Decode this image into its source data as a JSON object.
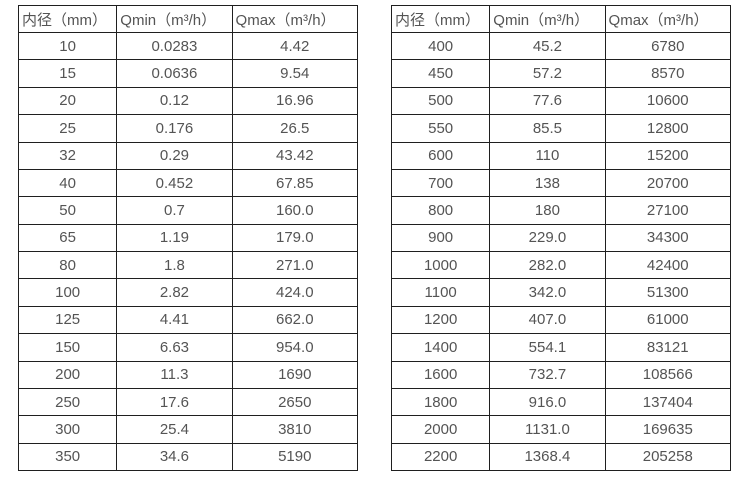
{
  "page": {
    "background": "#ffffff",
    "text_color": "#545454",
    "border_color": "#1f1f1f"
  },
  "tables": [
    {
      "name": "flow-table-small-diameters",
      "headers": [
        "内径（mm）",
        "Qmin（m³/h）",
        "Qmax（m³/h）"
      ],
      "rows": [
        [
          "10",
          "0.0283",
          "4.42"
        ],
        [
          "15",
          "0.0636",
          "9.54"
        ],
        [
          "20",
          "0.12",
          "16.96"
        ],
        [
          "25",
          "0.176",
          "26.5"
        ],
        [
          "32",
          "0.29",
          "43.42"
        ],
        [
          "40",
          "0.452",
          "67.85"
        ],
        [
          "50",
          "0.7",
          "160.0"
        ],
        [
          "65",
          "1.19",
          "179.0"
        ],
        [
          "80",
          "1.8",
          "271.0"
        ],
        [
          "100",
          "2.82",
          "424.0"
        ],
        [
          "125",
          "4.41",
          "662.0"
        ],
        [
          "150",
          "6.63",
          "954.0"
        ],
        [
          "200",
          "11.3",
          "1690"
        ],
        [
          "250",
          "17.6",
          "2650"
        ],
        [
          "300",
          "25.4",
          "3810"
        ],
        [
          "350",
          "34.6",
          "5190"
        ]
      ]
    },
    {
      "name": "flow-table-large-diameters",
      "headers": [
        "内径（mm）",
        "Qmin（m³/h）",
        "Qmax（m³/h）"
      ],
      "rows": [
        [
          "400",
          "45.2",
          "6780"
        ],
        [
          "450",
          "57.2",
          "8570"
        ],
        [
          "500",
          "77.6",
          "10600"
        ],
        [
          "550",
          "85.5",
          "12800"
        ],
        [
          "600",
          "110",
          "15200"
        ],
        [
          "700",
          "138",
          "20700"
        ],
        [
          "800",
          "180",
          "27100"
        ],
        [
          "900",
          "229.0",
          "34300"
        ],
        [
          "1000",
          "282.0",
          "42400"
        ],
        [
          "1100",
          "342.0",
          "51300"
        ],
        [
          "1200",
          "407.0",
          "61000"
        ],
        [
          "1400",
          "554.1",
          "83121"
        ],
        [
          "1600",
          "732.7",
          "108566"
        ],
        [
          "1800",
          "916.0",
          "137404"
        ],
        [
          "2000",
          "1131.0",
          "169635"
        ],
        [
          "2200",
          "1368.4",
          "205258"
        ]
      ]
    }
  ]
}
